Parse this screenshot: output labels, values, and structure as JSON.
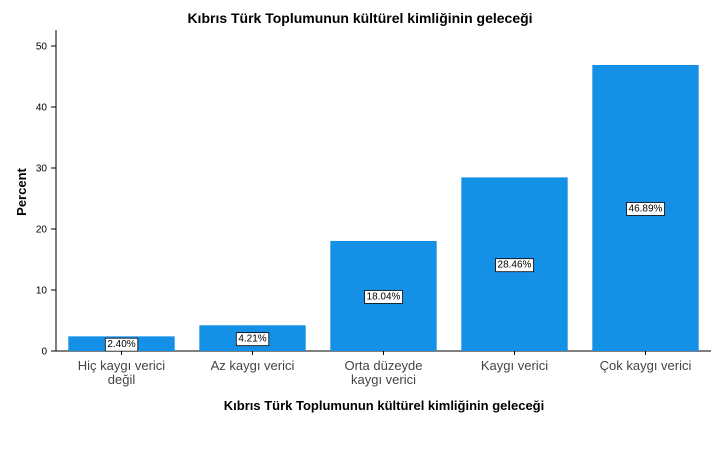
{
  "chart_data": {
    "type": "bar",
    "title": "Kıbrıs Türk Toplumunun kültürel kimliğinin geleceği",
    "xlabel": "Kıbrıs Türk Toplumunun kültürel kimliğinin geleceği",
    "ylabel": "Percent",
    "categories": [
      [
        "Hiç kaygı verici",
        "değil"
      ],
      [
        "Az kaygı verici"
      ],
      [
        "Orta düzeyde",
        "kaygı verici"
      ],
      [
        "Kaygı verici"
      ],
      [
        "Çok kaygı verici"
      ]
    ],
    "values": [
      2.4,
      4.21,
      18.04,
      28.46,
      46.89
    ],
    "data_labels": [
      "2.40%",
      "4.21%",
      "18.04%",
      "28.46%",
      "46.89%"
    ],
    "ylim": [
      0,
      50
    ],
    "yticks": [
      0,
      10,
      20,
      30,
      40,
      50
    ],
    "bar_color": "#1490E6",
    "grid": false,
    "legend": "none"
  }
}
